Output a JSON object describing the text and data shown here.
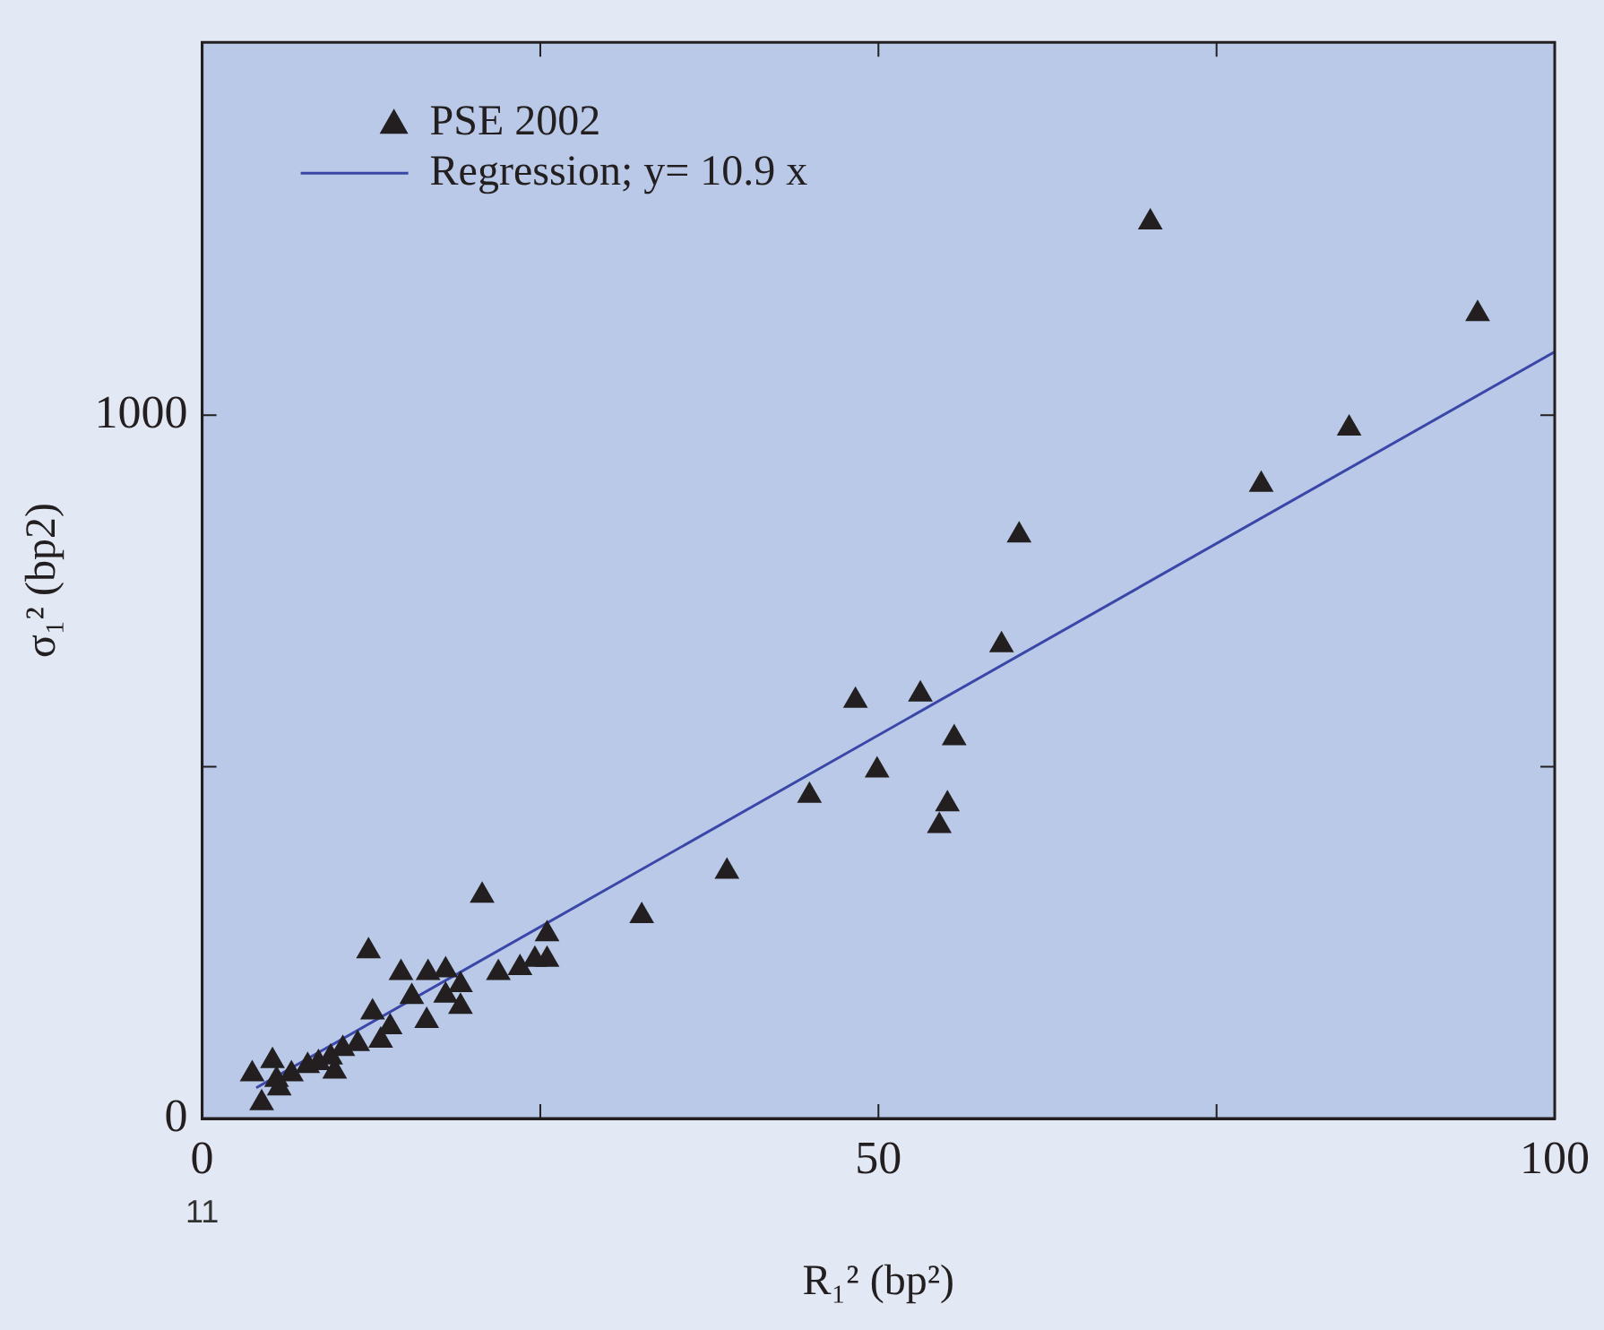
{
  "chart_data": {
    "type": "scatter",
    "xlabel": "R₁² (bp²)",
    "ylabel": "σ₁² (bp2)",
    "xlim": [
      0,
      100
    ],
    "ylim": [
      0,
      1530
    ],
    "xticks": [
      0,
      {
        "value": 25,
        "label": null
      },
      50,
      {
        "value": 75,
        "label": null
      },
      100
    ],
    "yticks": [
      0,
      {
        "value": 500,
        "label": null
      },
      1000
    ],
    "grid": false,
    "legend": "top left",
    "marker": "triangle",
    "annotations": [
      "11"
    ],
    "series": [
      {
        "name": "PSE 2002",
        "color": "#231f20",
        "x": [
          70.1,
          94.3,
          84.8,
          78.3,
          60.4,
          59.1,
          53.1,
          48.3,
          55.6,
          49.9,
          55.1,
          54.5,
          44.9,
          38.8,
          32.5,
          20.7,
          12.3,
          25.5,
          25.5,
          24.6,
          23.5,
          21.9,
          14.7,
          16.7,
          18.0,
          19.1,
          18.0,
          15.5,
          19.1,
          16.6,
          12.6,
          13.9,
          13.2,
          11.5,
          10.4,
          9.5,
          8.6,
          7.8,
          6.6,
          5.5,
          5.2,
          3.7,
          4.4,
          5.7,
          9.8
        ],
        "values": [
          1274,
          1144,
          981,
          901,
          829,
          673,
          603,
          594,
          541,
          495,
          447,
          416,
          459,
          351,
          288,
          317,
          238,
          262,
          226,
          226,
          214,
          207,
          207,
          207,
          211,
          190,
          175,
          173,
          159,
          139,
          151,
          130,
          111,
          106,
          99,
          87,
          79,
          75,
          63,
          55,
          82,
          63,
          22,
          43,
          67
        ]
      },
      {
        "name": "Regression; y= 10.9 x",
        "type": "line",
        "color": "#3b47a8",
        "marker": "none",
        "line_style": "solid",
        "x": [
          4,
          100
        ],
        "values": [
          43.6,
          1090
        ]
      }
    ]
  }
}
